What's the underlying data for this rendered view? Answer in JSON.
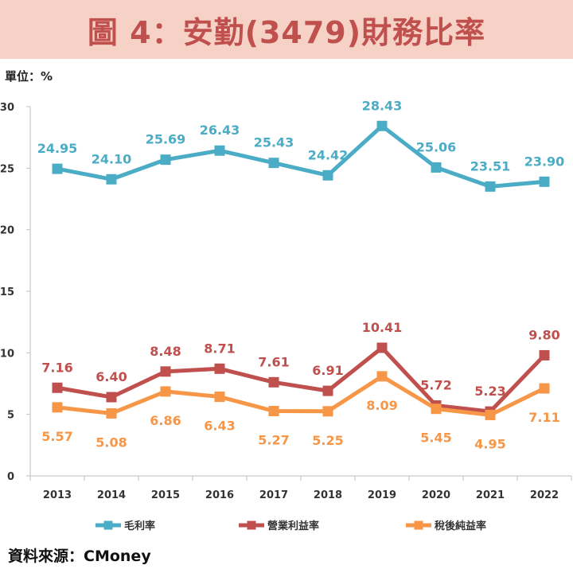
{
  "title": "圖 4：安勤(3479)財務比率",
  "unit": "單位：%",
  "source": "資料來源：CMoney",
  "colors": {
    "banner_bg": "#f6d2c6",
    "title": "#c0504d"
  },
  "chart_data": {
    "type": "line",
    "x": [
      "2013",
      "2014",
      "2015",
      "2016",
      "2017",
      "2018",
      "2019",
      "2020",
      "2021",
      "2022"
    ],
    "ylim": [
      0,
      30
    ],
    "yticks": [
      "0",
      "5",
      "10",
      "15",
      "20",
      "25",
      "30"
    ],
    "grid": false,
    "legend_position": "bottom",
    "series": [
      {
        "name": "毛利率",
        "color": "#4bacc6",
        "label_pos": "above",
        "values": [
          24.95,
          24.1,
          25.69,
          26.43,
          25.43,
          24.42,
          28.43,
          25.06,
          23.51,
          23.9
        ],
        "labels": [
          "24.95",
          "24.10",
          "25.69",
          "26.43",
          "25.43",
          "24.42",
          "28.43",
          "25.06",
          "23.51",
          "23.90"
        ]
      },
      {
        "name": "營業利益率",
        "color": "#c0504d",
        "label_pos": "above",
        "values": [
          7.16,
          6.4,
          8.48,
          8.71,
          7.61,
          6.91,
          10.41,
          5.72,
          5.23,
          9.8
        ],
        "labels": [
          "7.16",
          "6.40",
          "8.48",
          "8.71",
          "7.61",
          "6.91",
          "10.41",
          "5.72",
          "5.23",
          "9.80"
        ]
      },
      {
        "name": "稅後純益率",
        "color": "#f79646",
        "label_pos": "below",
        "values": [
          5.57,
          5.08,
          6.86,
          6.43,
          5.27,
          5.25,
          8.09,
          5.45,
          4.95,
          7.11
        ],
        "labels": [
          "5.57",
          "5.08",
          "6.86",
          "6.43",
          "5.27",
          "5.25",
          "8.09",
          "5.45",
          "4.95",
          "7.11"
        ]
      }
    ]
  }
}
